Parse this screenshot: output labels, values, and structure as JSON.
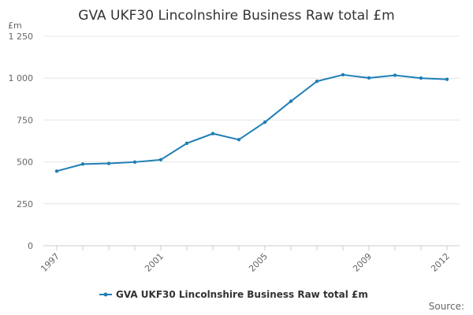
{
  "chart_data": {
    "type": "line",
    "title": "GVA UKF30 Lincolnshire Business Raw total £m",
    "ylabel": "£m",
    "xlabel": "",
    "ylim": [
      0,
      1250
    ],
    "yticks": [
      0,
      250,
      500,
      750,
      1000,
      1250
    ],
    "ytick_labels": [
      "0",
      "250",
      "500",
      "750",
      "1 000",
      "1 250"
    ],
    "x": [
      1997,
      1998,
      1999,
      2000,
      2001,
      2002,
      2003,
      2004,
      2005,
      2006,
      2007,
      2008,
      2009,
      2010,
      2011,
      2012
    ],
    "xtick_labels": [
      "1997",
      "2001",
      "2005",
      "2009",
      "2012"
    ],
    "grid": true,
    "legend_position": "bottom",
    "series": [
      {
        "name": "GVA UKF30 Lincolnshire Business Raw total £m",
        "color": "#1f7fb6",
        "values": [
          445,
          487,
          491,
          499,
          513,
          611,
          669,
          633,
          737,
          862,
          981,
          1020,
          1001,
          1017,
          1000,
          993
        ]
      }
    ],
    "source_label": "Source:"
  }
}
